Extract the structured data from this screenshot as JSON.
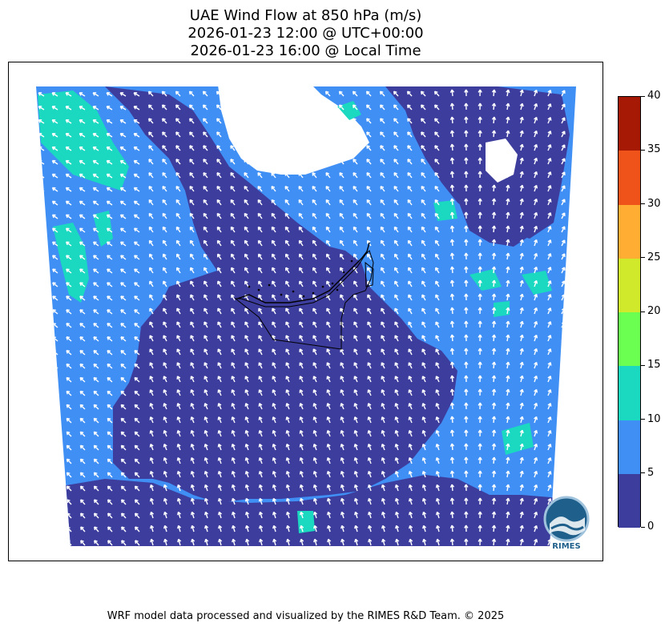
{
  "title": {
    "line1": "UAE Wind Flow at 850 hPa (m/s)",
    "line2": "2026-01-23 12:00 @ UTC+00:00",
    "line3": "2026-01-23 16:00 @ Local Time"
  },
  "colorbar": {
    "ticks": [
      "0",
      "5",
      "10",
      "15",
      "20",
      "25",
      "30",
      "35",
      "40"
    ],
    "min": 0,
    "max": 40,
    "colors": [
      "#3d3d9e",
      "#3f8ff5",
      "#1ad9c0",
      "#6bff52",
      "#d0ea2b",
      "#ffae33",
      "#f0531a",
      "#a61905"
    ]
  },
  "map": {
    "land_color": "#3d3d9e",
    "sea_color": "#3f8ff5",
    "strong_color": "#1ad9c0",
    "arrow_color": "#ffffff",
    "border_color": "#000000"
  },
  "logo": {
    "text": "RIMES"
  },
  "footer": "WRF model data processed and visualized by the RIMES R&D Team. © 2025"
}
